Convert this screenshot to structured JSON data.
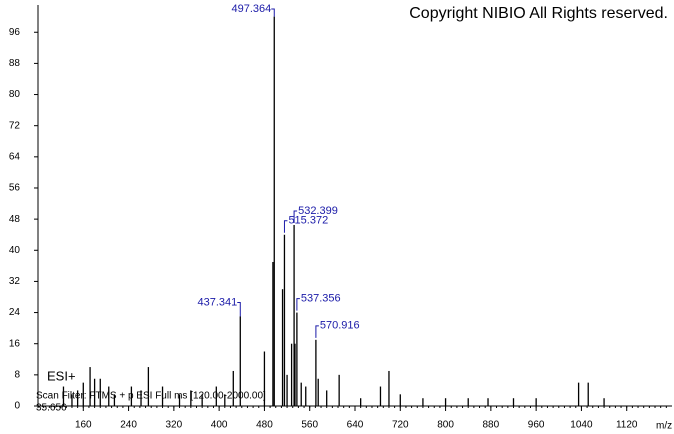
{
  "chart_data": {
    "type": "spectrum",
    "title": "Copyright NIBIO All Rights reserved.",
    "x_label": "m/z",
    "annotations": [
      "ESI+",
      "Scan Filter: FTMS + p ESI Full ms [120.00-2000.00]",
      "35.656"
    ],
    "xlim": [
      80,
      1200
    ],
    "ylim": [
      0,
      103
    ],
    "xticks": [
      160,
      240,
      320,
      400,
      480,
      560,
      640,
      720,
      800,
      880,
      960,
      1040,
      1120
    ],
    "yticks": [
      0,
      8,
      16,
      24,
      32,
      40,
      48,
      56,
      64,
      72,
      80,
      88,
      96
    ],
    "color": "#000000",
    "series": [
      {
        "labels": true,
        "x": [
          437.341,
          497.364,
          515.372,
          532.399,
          537.356,
          570.916
        ],
        "values": [
          23,
          100,
          44,
          46.5,
          24,
          17
        ]
      },
      {
        "labels": false,
        "x": [
          125,
          140,
          150,
          160,
          172,
          180,
          190,
          205,
          215,
          245,
          262,
          275,
          300,
          330,
          350,
          370,
          395,
          410,
          425,
          480,
          495,
          512,
          520,
          528,
          534,
          545,
          553,
          575,
          590,
          612,
          650,
          685,
          700,
          720,
          760,
          800,
          840,
          875,
          920,
          960,
          1035,
          1052,
          1080
        ],
        "values": [
          5,
          3,
          4,
          6,
          10,
          7,
          7,
          5,
          3,
          5,
          4,
          10,
          5,
          3,
          4,
          3,
          5,
          3,
          9,
          14,
          37,
          30,
          8,
          16,
          16,
          6,
          5,
          7,
          4,
          8,
          2,
          5,
          9,
          3,
          2,
          2,
          2,
          2,
          2,
          2,
          6,
          6,
          2
        ]
      }
    ]
  }
}
